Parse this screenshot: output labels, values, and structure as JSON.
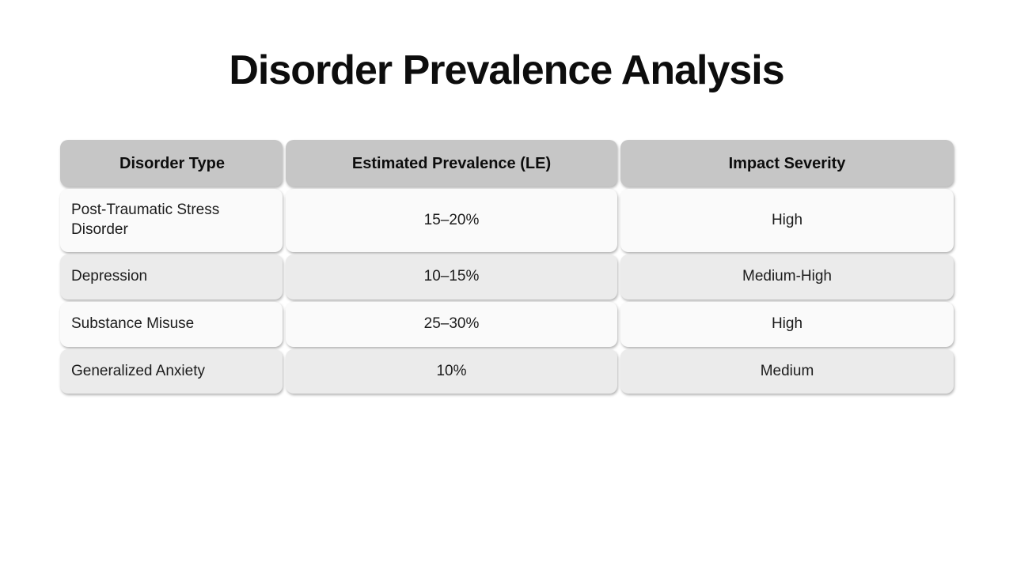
{
  "title": "Disorder Prevalence Analysis",
  "chart_data": {
    "type": "table",
    "title": "Disorder Prevalence Analysis",
    "columns": [
      "Disorder Type",
      "Estimated Prevalence (LE)",
      "Impact Severity"
    ],
    "rows": [
      [
        "Post-Traumatic Stress Disorder",
        "15–20%",
        "High"
      ],
      [
        "Depression",
        "10–15%",
        "Medium-High"
      ],
      [
        "Substance Misuse",
        "25–30%",
        "High"
      ],
      [
        "Generalized Anxiety",
        "10%",
        "Medium"
      ]
    ],
    "layout_hints": {
      "row_striping": "alternating light/dark below header",
      "first_column_alignment": "left",
      "other_columns_alignment": "center"
    }
  },
  "colors": {
    "page_background": "#ffffff",
    "header_cell_background": "#c6c6c6",
    "row_light_background": "#fafafa",
    "row_dark_background": "#ebebeb",
    "body_text": "#1c1c1c",
    "title_text": "#0d0d0d"
  }
}
